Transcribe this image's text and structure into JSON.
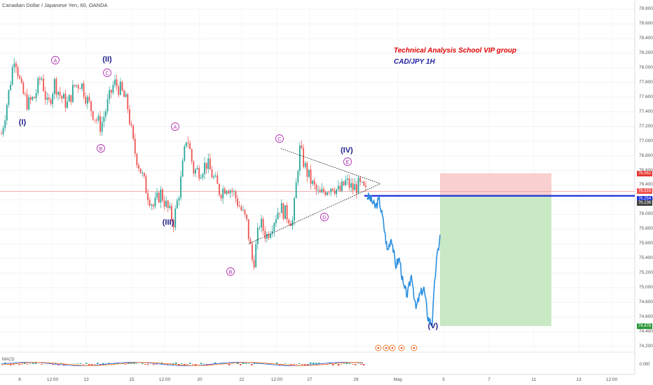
{
  "header": {
    "symbol_title": "Canadian Dollar / Japanese Yen, 60, OANDA"
  },
  "annotations": {
    "group_text": "Technical Analysis School VIP group",
    "pair_text": "CAD/JPY 1H"
  },
  "indicator": {
    "label": "MACD"
  },
  "colors": {
    "up_candle": "#26a69a",
    "down_candle": "#ef5350",
    "projection_line": "#2a8fe0",
    "entry_line": "#1a2fd8",
    "wave_labels": "#1f1f8a",
    "sub_wave_labels": "#b030b0",
    "target_zone": "#c9e9c4",
    "stop_zone": "#f9cfcf"
  },
  "price_tags": [
    {
      "value": "76.562",
      "color": "#e53935"
    },
    {
      "value": "76.315",
      "color": "#ef5350"
    },
    {
      "value": "76.254",
      "color": "#1a2fd8"
    },
    {
      "value": "76.236",
      "color": "#444444"
    },
    {
      "value": "74.476",
      "color": "#2e9a3a"
    },
    {
      "value": "0.000",
      "color": "#ffffff"
    }
  ],
  "chart_data": {
    "type": "candlestick",
    "title": "Canadian Dollar / Japanese Yen, 60, OANDA",
    "ylim": [
      74.15,
      78.85
    ],
    "y_ticks": [
      78.8,
      78.6,
      78.4,
      78.2,
      78.0,
      77.8,
      77.6,
      77.4,
      77.2,
      77.0,
      76.8,
      76.6,
      76.4,
      76.2,
      76.0,
      75.8,
      75.6,
      75.4,
      75.2,
      75.0,
      74.8,
      74.6,
      74.4,
      74.2
    ],
    "x_ticks": [
      "8",
      "12:00",
      "13",
      "15",
      "12:00",
      "20",
      "22",
      "12:00",
      "27",
      "29",
      "May",
      "5",
      "7",
      "11",
      "13",
      "12:00"
    ],
    "macd_zero": "0.000",
    "price_path": [
      [
        77.1,
        77.6,
        78.2,
        77.7,
        77.5,
        77.6,
        77.9,
        77.45,
        77.8,
        77.6,
        77.5,
        77.75,
        77.8,
        77.55,
        77.35,
        77.2,
        77.5,
        77.8,
        77.7,
        77.5,
        76.9,
        76.6,
        76.3,
        76.1,
        76.3,
        76.1,
        75.9,
        76.4,
        77.1,
        76.6,
        76.6,
        76.7,
        76.5,
        76.3,
        76.4,
        76.3,
        76.1,
        75.9,
        75.3,
        75.9,
        75.7,
        75.9,
        76.1,
        76.0,
        75.9,
        76.9,
        76.6,
        76.4,
        76.25,
        76.35,
        76.4,
        76.3,
        76.45,
        76.35,
        76.4,
        76.3
      ]
    ],
    "projection": [
      76.25,
      76.2,
      76.1,
      76.2,
      75.9,
      75.5,
      75.7,
      75.3,
      75.4,
      75.0,
      74.9,
      75.2,
      74.7,
      74.9,
      75.0,
      74.6,
      74.5,
      75.3,
      75.7
    ],
    "position": {
      "entry": 76.254,
      "stop": 76.562,
      "target": 74.476
    },
    "elliott_waves": [
      {
        "label": "(I)",
        "price": 77.1
      },
      {
        "label": "(II)",
        "price": 78.1
      },
      {
        "label": "(III)",
        "price": 75.9
      },
      {
        "label": "(IV)",
        "price": 76.9
      },
      {
        "label": "(V)",
        "price": 74.55
      }
    ],
    "sub_waves": [
      {
        "label": "A",
        "price": 78.0
      },
      {
        "label": "B",
        "price": 77.0
      },
      {
        "label": "C",
        "price": 77.9
      },
      {
        "label": "A",
        "price": 77.2
      },
      {
        "label": "B",
        "price": 75.3
      },
      {
        "label": "C",
        "price": 76.95
      },
      {
        "label": "D",
        "price": 75.95
      },
      {
        "label": "E",
        "price": 76.6
      }
    ],
    "triangle": {
      "upper_from": 76.9,
      "lower_from": 75.6,
      "apex": 76.42
    }
  }
}
